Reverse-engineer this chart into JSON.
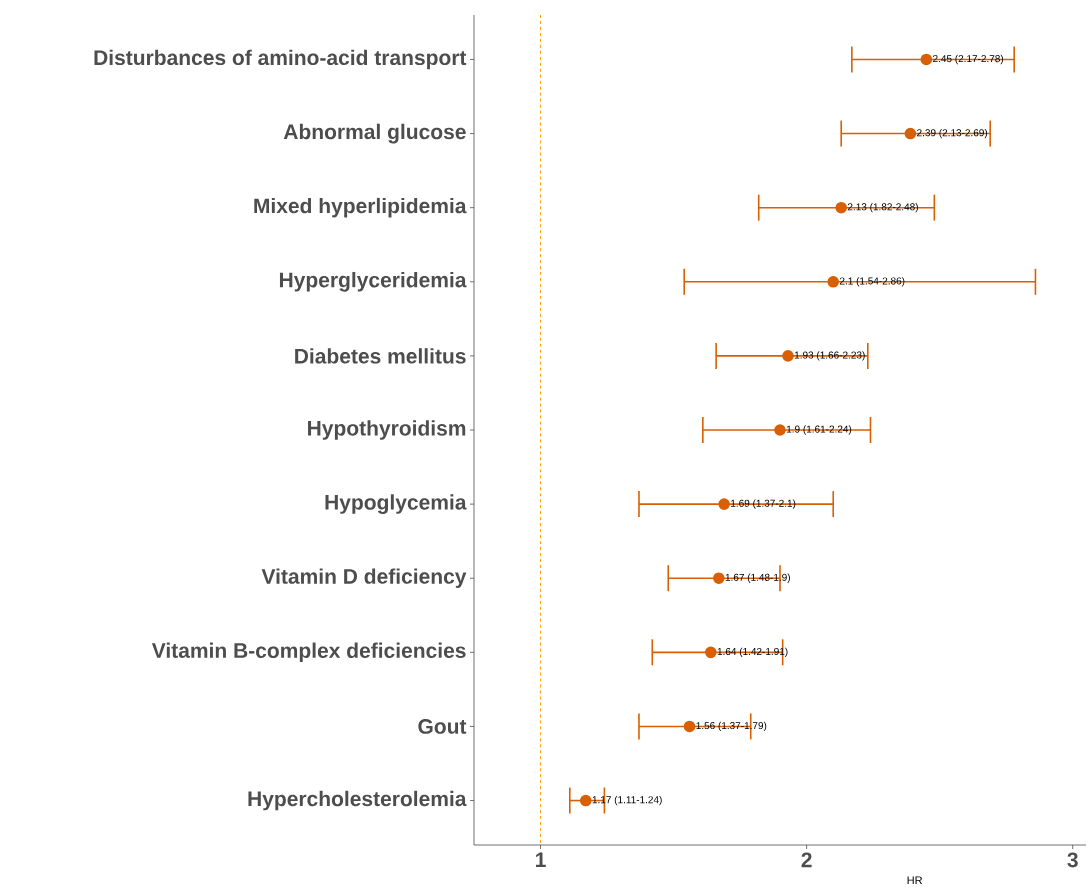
{
  "chart_data": {
    "type": "scatter",
    "orientation": "horizontal",
    "categories": [
      "Disturbances of amino-acid transport",
      "Abnormal glucose",
      "Mixed hyperlipidemia",
      "Hyperglyceridemia",
      "Diabetes mellitus",
      "Hypothyroidism",
      "Hypoglycemia",
      "Vitamin D deficiency",
      "Vitamin B-complex deficiencies",
      "Gout",
      "Hypercholesterolemia"
    ],
    "values": [
      2.45,
      2.39,
      2.13,
      2.1,
      1.93,
      1.9,
      1.69,
      1.67,
      1.64,
      1.56,
      1.17
    ],
    "errors": [
      [
        2.17,
        2.78
      ],
      [
        2.13,
        2.69
      ],
      [
        1.82,
        2.48
      ],
      [
        1.54,
        2.86
      ],
      [
        1.66,
        2.23
      ],
      [
        1.61,
        2.24
      ],
      [
        1.37,
        2.1
      ],
      [
        1.48,
        1.9
      ],
      [
        1.42,
        1.91
      ],
      [
        1.37,
        1.79
      ],
      [
        1.11,
        1.24
      ]
    ],
    "value_labels": [
      "2.45 (2.17-2.78)",
      "2.39 (2.13-2.69)",
      "2.13 (1.82-2.48)",
      "2.1 (1.54-2.86)",
      "1.93 (1.66-2.23)",
      "1.9 (1.61-2.24)",
      "1.69 (1.37-2.1)",
      "1.67 (1.48-1.9)",
      "1.64 (1.42-1.91)",
      "1.56 (1.37-1.79)",
      "1.17 (1.11-1.24)"
    ],
    "color": "#d95f02",
    "xlim": [
      0.75,
      3.05
    ],
    "xticks": [
      1,
      2,
      3
    ],
    "xlabel": "HR",
    "ref_lines": [
      {
        "axis": "x",
        "value": 1,
        "color": "#ffa500",
        "line_style": "dashed"
      }
    ]
  }
}
